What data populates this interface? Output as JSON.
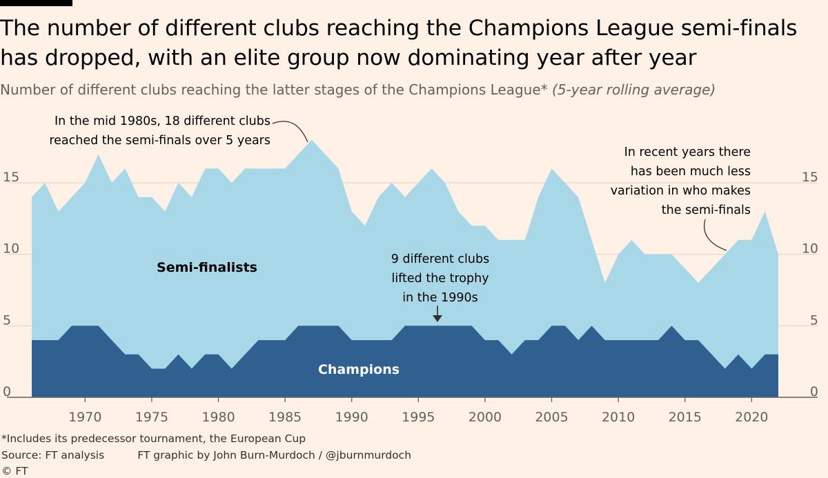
{
  "header": {
    "title": "The number of different clubs reaching the Champions League semi-finals has dropped, with an elite group now dominating year after year",
    "subtitle_main": "Number of different clubs reaching the latter stages of the Champions League*",
    "subtitle_italic": "(5-year rolling average)"
  },
  "colors": {
    "background": "#FFF1E5",
    "semi_finalists": "#A8D8E8",
    "champions": "#306090",
    "gridline": "#E0D7CF",
    "baseline": "#66605C"
  },
  "chart_data": {
    "type": "area",
    "title": "Number of different clubs reaching the latter stages of the Champions League* (5-year rolling average)",
    "x": [
      1966,
      1967,
      1968,
      1969,
      1970,
      1971,
      1972,
      1973,
      1974,
      1975,
      1976,
      1977,
      1978,
      1979,
      1980,
      1981,
      1982,
      1983,
      1984,
      1985,
      1986,
      1987,
      1988,
      1989,
      1990,
      1991,
      1992,
      1993,
      1994,
      1995,
      1996,
      1997,
      1998,
      1999,
      2000,
      2001,
      2002,
      2003,
      2004,
      2005,
      2006,
      2007,
      2008,
      2009,
      2010,
      2011,
      2012,
      2013,
      2014,
      2015,
      2016,
      2017,
      2018,
      2019,
      2020,
      2021,
      2022
    ],
    "series": [
      {
        "name": "Semi-finalists",
        "values": [
          14,
          15,
          13,
          14,
          15,
          17,
          15,
          16,
          14,
          14,
          13,
          15,
          14,
          16,
          16,
          15,
          16,
          16,
          16,
          16,
          17,
          18,
          17,
          16,
          13,
          12,
          14,
          15,
          14,
          15,
          16,
          15,
          13,
          12,
          12,
          11,
          11,
          11,
          14,
          16,
          15,
          14,
          11,
          8,
          10,
          11,
          10,
          10,
          10,
          9,
          8,
          9,
          10,
          11,
          11,
          13,
          10
        ]
      },
      {
        "name": "Champions",
        "values": [
          4,
          4,
          4,
          5,
          5,
          5,
          4,
          3,
          3,
          2,
          2,
          3,
          2,
          3,
          3,
          2,
          3,
          4,
          4,
          4,
          5,
          5,
          5,
          5,
          4,
          4,
          4,
          4,
          5,
          5,
          5,
          5,
          5,
          5,
          4,
          4,
          3,
          4,
          4,
          5,
          5,
          4,
          5,
          4,
          4,
          4,
          4,
          4,
          5,
          4,
          4,
          3,
          2,
          3,
          2,
          3,
          3
        ]
      }
    ],
    "xticks": [
      "1970",
      "1975",
      "1980",
      "1985",
      "1990",
      "1995",
      "2000",
      "2005",
      "2010",
      "2015",
      "2020"
    ],
    "yticks": [
      "0",
      "5",
      "10",
      "15"
    ],
    "ylim": [
      0,
      18
    ],
    "series_labels": {
      "semi": "Semi-finalists",
      "champions": "Champions"
    },
    "annotations": {
      "peak": [
        "In the mid 1980s, 18 different clubs",
        "reached the semi-finals over 5 years"
      ],
      "nineties": [
        "9 different clubs",
        "lifted the trophy",
        "in the 1990s"
      ],
      "recent": [
        "In recent years there",
        "has been much less",
        "variation in who makes",
        "the semi-finals"
      ]
    }
  },
  "footer": {
    "note": "*Includes its predecessor tournament, the European Cup",
    "source": "Source: FT analysis",
    "credit": "FT graphic by John Burn-Murdoch / @jburnmurdoch",
    "copyright": "© FT"
  }
}
